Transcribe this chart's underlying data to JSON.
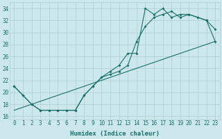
{
  "xlabel": "Humidex (Indice chaleur)",
  "ylabel": "",
  "bg_color": "#cce8ec",
  "grid_color": "#aacfd5",
  "line_color": "#1a6e6a",
  "xlim": [
    -0.5,
    23.5
  ],
  "ylim": [
    15.5,
    35.0
  ],
  "xticks": [
    0,
    1,
    2,
    3,
    4,
    5,
    6,
    7,
    8,
    9,
    10,
    11,
    12,
    13,
    14,
    15,
    16,
    17,
    18,
    19,
    20,
    21,
    22,
    23
  ],
  "yticks": [
    16,
    18,
    20,
    22,
    24,
    26,
    28,
    30,
    32,
    34
  ],
  "line1_x": [
    0,
    23
  ],
  "line1_y": [
    17.0,
    28.5
  ],
  "line2_x": [
    0,
    1,
    2,
    3,
    4,
    5,
    6,
    7,
    8,
    9,
    10,
    11,
    12,
    13,
    14,
    15,
    16,
    17,
    18,
    19,
    20,
    21,
    22,
    23
  ],
  "line2_y": [
    21.0,
    19.5,
    18.0,
    17.0,
    17.0,
    17.0,
    17.0,
    17.0,
    19.5,
    21.0,
    22.5,
    23.0,
    23.5,
    24.5,
    28.5,
    31.0,
    32.5,
    33.0,
    33.5,
    32.5,
    33.0,
    32.5,
    32.0,
    30.5
  ],
  "line3_x": [
    0,
    1,
    2,
    3,
    4,
    5,
    6,
    7,
    8,
    9,
    10,
    11,
    12,
    13,
    14,
    15,
    16,
    17,
    18,
    19,
    20,
    21,
    22,
    23
  ],
  "line3_y": [
    21.0,
    19.5,
    18.0,
    17.0,
    17.0,
    17.0,
    17.0,
    17.0,
    19.5,
    21.0,
    22.5,
    23.5,
    24.5,
    26.5,
    26.5,
    34.0,
    33.0,
    34.0,
    32.5,
    33.0,
    33.0,
    32.5,
    32.0,
    28.5
  ]
}
